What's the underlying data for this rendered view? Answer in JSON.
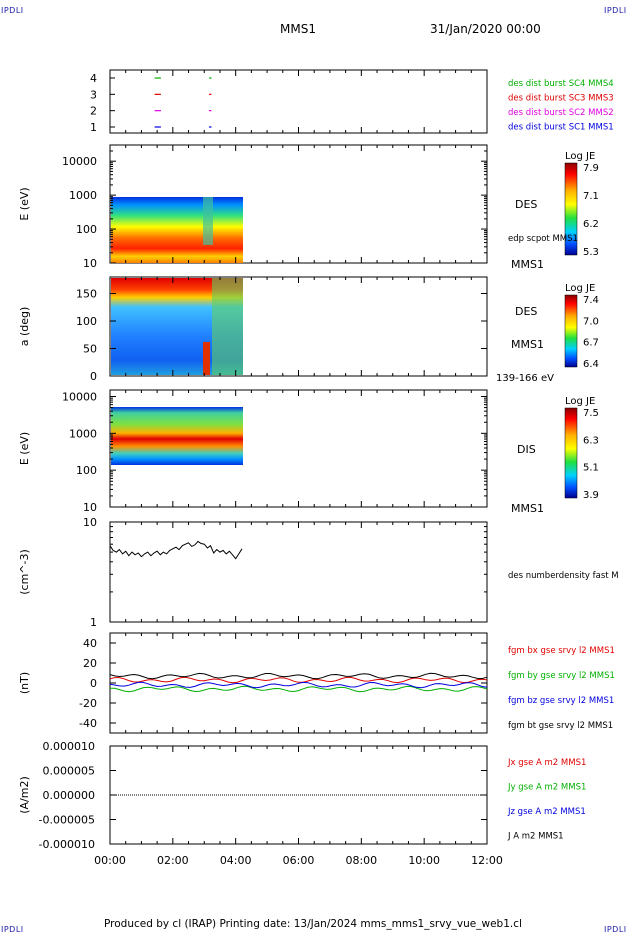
{
  "corner_label": "IPDLI",
  "header": {
    "mission": "MMS1",
    "date": "31/Jan/2020 00:00"
  },
  "footer": "Produced by cl (IRAP)   Printing date: 13/Jan/2024   mms_mms1_srvy_vue_web1.cl",
  "colors": {
    "red": "#e00000",
    "green": "#00b000",
    "blue": "#0000e0",
    "magenta": "#e000e0",
    "black": "#000000"
  },
  "chart_data": [
    {
      "type": "line",
      "panel": "spacecraft-availability",
      "yticks": [
        "1",
        "2",
        "3",
        "4"
      ],
      "series": [
        {
          "name": "des dist burst SC1 MMS1",
          "color": "#0000e0",
          "y": 1
        },
        {
          "name": "des dist burst SC2 MMS2",
          "color": "#e000e0",
          "y": 2
        },
        {
          "name": "des dist burst SC3 MMS3",
          "color": "#e00000",
          "y": 3
        },
        {
          "name": "des dist burst SC4 MMS4",
          "color": "#00b000",
          "y": 4
        }
      ],
      "segments_hours": [
        [
          1.42,
          1.62
        ],
        [
          3.15,
          3.23
        ]
      ]
    },
    {
      "type": "heatmap",
      "panel": "des-energy",
      "ylabel": "E (eV)",
      "yscale": "log",
      "ylim": [
        10,
        30000
      ],
      "yticks": [
        "10",
        "100",
        "1000",
        "10000"
      ],
      "colorbar": {
        "title": "Log JE",
        "ticks": [
          "7.9",
          "7.1",
          "6.2",
          "5.3"
        ]
      },
      "right_labels": [
        "DES",
        "edp scpot MMS1",
        "MMS1"
      ]
    },
    {
      "type": "heatmap",
      "panel": "des-pitch-angle",
      "ylabel": "a (deg)",
      "ylim": [
        0,
        180
      ],
      "yticks": [
        "0",
        "50",
        "100",
        "150"
      ],
      "colorbar": {
        "title": "Log JE",
        "ticks": [
          "7.4",
          "7.0",
          "6.7",
          "6.4"
        ]
      },
      "right_labels": [
        "DES",
        "MMS1",
        "139-166 eV"
      ]
    },
    {
      "type": "heatmap",
      "panel": "dis-energy",
      "ylabel": "E (eV)",
      "yscale": "log",
      "ylim": [
        10,
        15000
      ],
      "yticks": [
        "10",
        "100",
        "1000",
        "10000"
      ],
      "colorbar": {
        "title": "Log JE",
        "ticks": [
          "7.5",
          "6.3",
          "5.1",
          "3.9"
        ]
      },
      "right_labels": [
        "DIS",
        "MMS1"
      ]
    },
    {
      "type": "line",
      "panel": "density",
      "ylabel": "(cm^-3)",
      "yscale": "log",
      "ylim": [
        1,
        10
      ],
      "yticks": [
        "1",
        "10"
      ],
      "series": [
        {
          "name": "des numberdensity fast M",
          "color": "#000000",
          "x": [
            0,
            0.1,
            0.2,
            0.3,
            0.4,
            0.5,
            0.6,
            0.7,
            0.8,
            0.9,
            1.0,
            1.1,
            1.2,
            1.3,
            1.4,
            1.5,
            1.6,
            1.7,
            1.8,
            1.9,
            2.0,
            2.1,
            2.2,
            2.3,
            2.4,
            2.5,
            2.6,
            2.7,
            2.8,
            2.9,
            3.0,
            3.1,
            3.2,
            3.3,
            3.4,
            3.5,
            3.6,
            3.7,
            3.8,
            3.9,
            4.0,
            4.1,
            4.2
          ],
          "y": [
            5.8,
            5.2,
            5.0,
            5.3,
            4.8,
            5.1,
            4.6,
            5.0,
            4.7,
            4.9,
            4.5,
            4.8,
            5.0,
            4.6,
            4.9,
            5.1,
            4.7,
            5.0,
            4.8,
            5.2,
            5.4,
            5.6,
            5.3,
            5.8,
            6.0,
            6.2,
            5.7,
            5.9,
            6.4,
            6.1,
            6.0,
            5.5,
            5.8,
            4.9,
            5.3,
            5.0,
            5.2,
            4.8,
            5.1,
            4.7,
            4.3,
            4.8,
            5.4
          ]
        }
      ]
    },
    {
      "type": "line",
      "panel": "magnetic-field",
      "ylabel": "(nT)",
      "ylim": [
        -50,
        50
      ],
      "yticks": [
        "-40",
        "-20",
        "0",
        "20",
        "40"
      ],
      "series": [
        {
          "name": "fgm bx gse srvy l2 MMS1",
          "color": "#e00000"
        },
        {
          "name": "fgm by gse srvy l2 MMS1",
          "color": "#00b000"
        },
        {
          "name": "fgm bz gse srvy l2 MMS1",
          "color": "#0000e0"
        },
        {
          "name": "fgm bt gse srvy l2 MMS1",
          "color": "#000000"
        }
      ]
    },
    {
      "type": "line",
      "panel": "current-density",
      "ylabel": "(A/m2)",
      "ylim": [
        -1e-05,
        1e-05
      ],
      "yticks": [
        "-0.000010",
        "-0.000005",
        "0.000000",
        "0.000005",
        "0.000010"
      ],
      "xticks": [
        "00:00",
        "02:00",
        "04:00",
        "06:00",
        "08:00",
        "10:00",
        "12:00"
      ],
      "series": [
        {
          "name": "Jx gse A m2 MMS1",
          "color": "#e00000"
        },
        {
          "name": "Jy gse A m2 MMS1",
          "color": "#00b000"
        },
        {
          "name": "Jz gse A m2 MMS1",
          "color": "#0000e0"
        },
        {
          "name": "J A m2 MMS1",
          "color": "#000000"
        }
      ]
    }
  ]
}
